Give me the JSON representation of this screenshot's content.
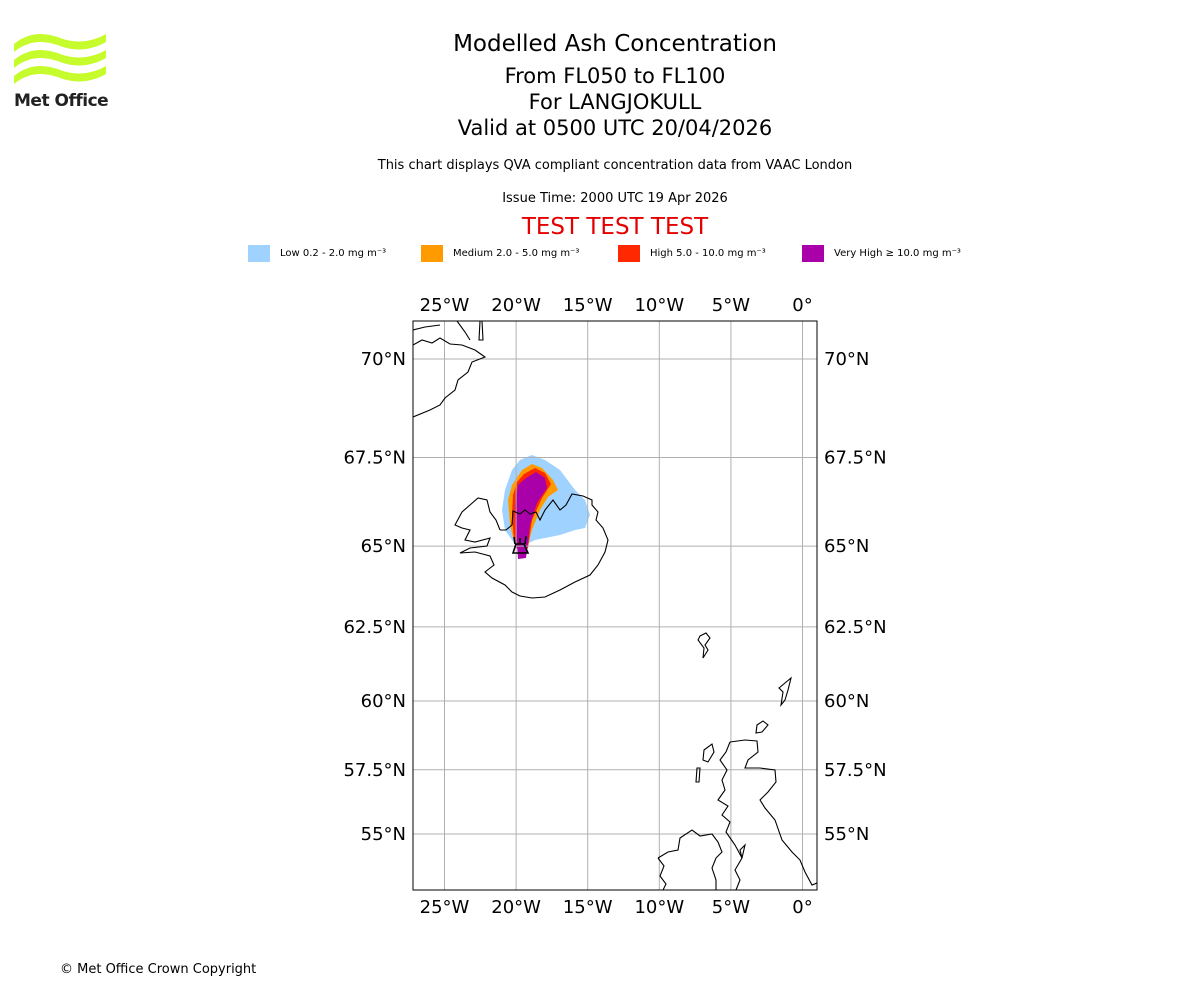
{
  "logo": {
    "text": "Met Office",
    "color": "#c6fb2c"
  },
  "header": {
    "title": "Modelled Ash Concentration",
    "levels": "From FL050 to FL100",
    "volcano": "For LANGJOKULL",
    "valid": "Valid at 0500 UTC 20/04/2026",
    "subtitle": "This chart displays QVA compliant concentration data from VAAC London",
    "issue_time": "Issue Time: 2000 UTC 19 Apr 2026",
    "test_banner": "TEST TEST TEST",
    "test_color": "#e50000"
  },
  "legend": [
    {
      "label": "Low 0.2 - 2.0 mg m⁻³",
      "color": "#a0d2ff"
    },
    {
      "label": "Medium 2.0 - 5.0 mg m⁻³",
      "color": "#ff9b00"
    },
    {
      "label": "High 5.0 - 10.0 mg m⁻³",
      "color": "#ff2800"
    },
    {
      "label": "Very High ≥ 10.0 mg m⁻³",
      "color": "#aa00aa"
    }
  ],
  "map": {
    "lon_ticks": [
      {
        "value": -25,
        "label": "25°W"
      },
      {
        "value": -20,
        "label": "20°W"
      },
      {
        "value": -15,
        "label": "15°W"
      },
      {
        "value": -10,
        "label": "10°W"
      },
      {
        "value": -5,
        "label": "5°W"
      },
      {
        "value": 0,
        "label": "0°"
      }
    ],
    "lat_ticks": [
      {
        "value": 70,
        "label": "70°N"
      },
      {
        "value": 67.5,
        "label": "67.5°N"
      },
      {
        "value": 65,
        "label": "65°N"
      },
      {
        "value": 62.5,
        "label": "62.5°N"
      },
      {
        "value": 60,
        "label": "60°N"
      },
      {
        "value": 57.5,
        "label": "57.5°N"
      },
      {
        "value": 55,
        "label": "55°N"
      }
    ],
    "extent": {
      "lon": [
        -27.2,
        1.0
      ],
      "lat": [
        53.3,
        71.0
      ]
    }
  },
  "footer": {
    "copyright": "© Met Office Crown Copyright"
  }
}
